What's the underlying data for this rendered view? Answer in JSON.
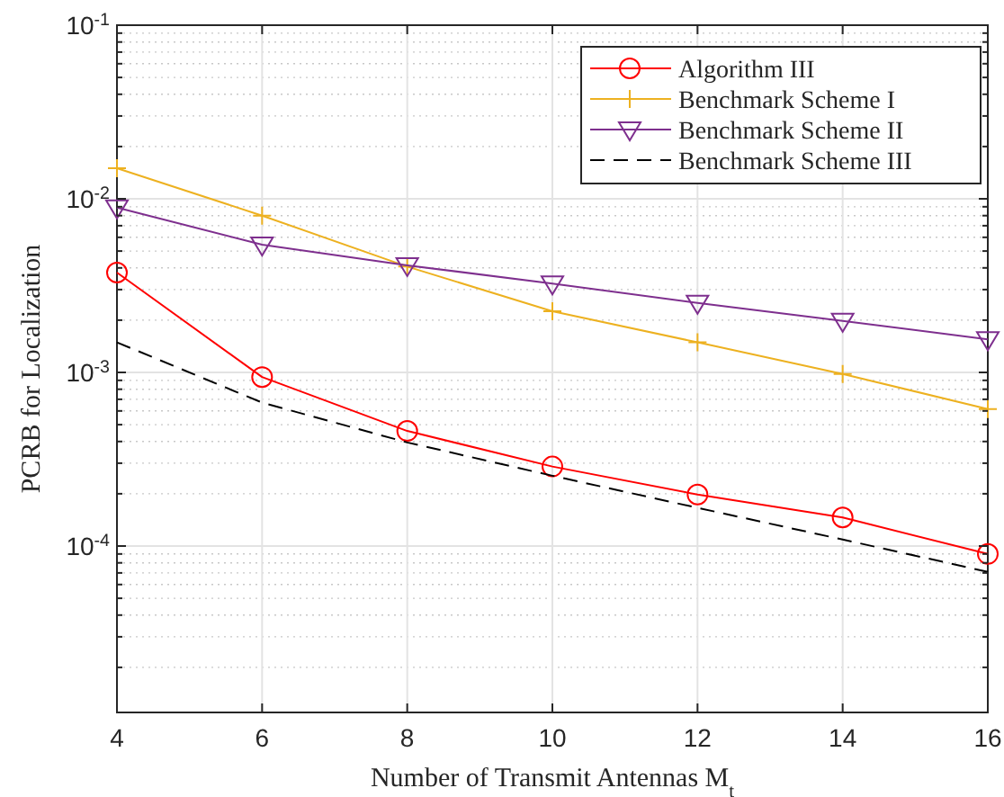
{
  "chart_data": {
    "type": "line",
    "xlabel": "Number of Transmit Antennas M$_{t}$",
    "ylabel": "PCRB for Localization",
    "x": [
      4,
      6,
      8,
      10,
      12,
      14,
      16
    ],
    "xlim": [
      4,
      16
    ],
    "xticks": [
      4,
      6,
      8,
      10,
      12,
      14,
      16
    ],
    "ylim": [
      1.1e-05,
      0.1
    ],
    "yticks": [
      {
        "value": 0.1,
        "label": "10$^{-1}$"
      },
      {
        "value": 0.01,
        "label": "10$^{-2}$"
      },
      {
        "value": 0.001,
        "label": "10$^{-3}$"
      },
      {
        "value": 0.0001,
        "label": "10$^{-4}$"
      }
    ],
    "log": "y",
    "grid": true,
    "legend": "top right",
    "series": [
      {
        "name": "Algorithm III",
        "color": "#ff0000",
        "marker": "circle",
        "line_style": "solid",
        "values": [
          0.00376,
          0.00094,
          0.00046,
          0.000287,
          0.000198,
          0.000146,
          9e-05
        ]
      },
      {
        "name": "Benchmark Scheme I",
        "color": "#edb120",
        "marker": "cross",
        "line_style": "solid",
        "values": [
          0.015,
          0.008,
          0.00407,
          0.00225,
          0.00149,
          0.00098,
          0.000615
        ]
      },
      {
        "name": "Benchmark Scheme II",
        "color": "#7e2f8e",
        "marker": "triangle",
        "line_style": "solid",
        "values": [
          0.0089,
          0.00544,
          0.00414,
          0.00325,
          0.00251,
          0.00198,
          0.00155
        ]
      },
      {
        "name": "Benchmark Scheme III",
        "color": "#000000",
        "marker": "none",
        "line_style": "dashed",
        "values": [
          0.00149,
          0.00067,
          0.000395,
          0.000254,
          0.000166,
          0.000109,
          7.1e-05
        ]
      }
    ]
  }
}
